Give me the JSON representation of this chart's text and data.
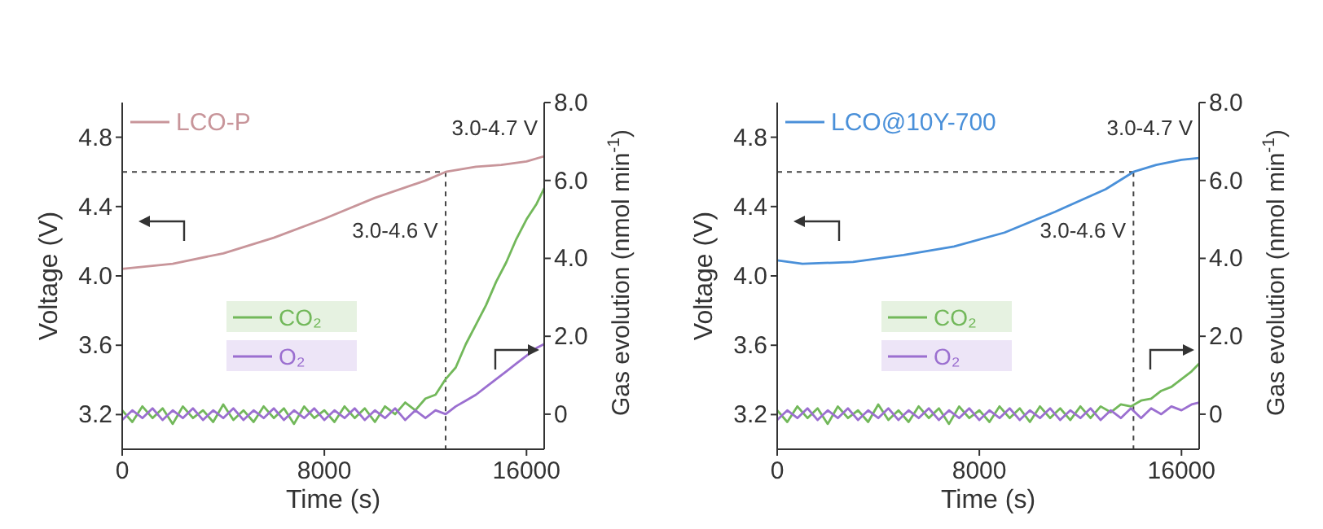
{
  "chart_data": [
    {
      "type": "line",
      "xlabel": "Time (s)",
      "ylabel": "Voltage (V)",
      "y2label": "Gas evolution (nmol min$^{-1}$)",
      "xlim": [
        0,
        16700
      ],
      "xticks": [
        0,
        8000,
        16000
      ],
      "ylim": [
        3.0,
        5.0
      ],
      "yticks": [
        3.2,
        3.6,
        {
          "value": 4.0,
          "label": "4.0"
        },
        4.4,
        4.8
      ],
      "y2lim": [
        -0.9,
        8.0
      ],
      "y2ticks": [
        0,
        {
          "value": 2,
          "label": "2.0"
        },
        {
          "value": 4,
          "label": "4.0"
        },
        {
          "value": 6,
          "label": "6.0"
        },
        {
          "value": 8,
          "label": "8.0"
        }
      ],
      "legend": "top left",
      "grid": false,
      "ref_lines": [
        {
          "axis": "y",
          "value": 4.6,
          "line_style": "dashed"
        },
        {
          "axis": "x",
          "value": 12800,
          "line_style": "dashed"
        }
      ],
      "annotations": [
        "3.0-4.7 V",
        {
          "text": "3.0-4.6 V",
          "x": 12500,
          "y": 4.22
        }
      ],
      "x": [
        0,
        400,
        800,
        1200,
        1600,
        2000,
        2400,
        2800,
        3200,
        3600,
        4000,
        4400,
        4800,
        5200,
        5600,
        6000,
        6400,
        6800,
        7200,
        7600,
        8000,
        8400,
        8800,
        9200,
        9600,
        10000,
        10400,
        10800,
        11200,
        11600,
        12000,
        12400,
        12800,
        13200,
        13600,
        14000,
        14400,
        14800,
        15200,
        15600,
        16000,
        16400,
        16700
      ],
      "series": [
        {
          "name": "LCO-P",
          "color": "#c8959a",
          "x": [
            0,
            2000,
            4000,
            6000,
            8000,
            10000,
            12000,
            12800,
            14000,
            15000,
            16000,
            16700
          ],
          "values": [
            4.04,
            4.07,
            4.13,
            4.22,
            4.33,
            4.45,
            4.55,
            4.6,
            4.63,
            4.64,
            4.66,
            4.69
          ]
        },
        {
          "name": "CO₂",
          "color": "#72b85a",
          "axis": "y2",
          "values": [
            0.1,
            -0.2,
            0.2,
            -0.1,
            0.15,
            -0.25,
            0.2,
            -0.1,
            0.1,
            -0.2,
            0.25,
            -0.15,
            0.1,
            -0.2,
            0.2,
            -0.1,
            0.15,
            -0.25,
            0.2,
            -0.1,
            0.1,
            -0.2,
            0.2,
            -0.1,
            0.15,
            -0.2,
            0.2,
            0,
            0.3,
            0.1,
            0.4,
            0.5,
            0.9,
            1.2,
            1.8,
            2.3,
            2.8,
            3.4,
            3.9,
            4.5,
            5.0,
            5.4,
            5.8
          ]
        },
        {
          "name": "O₂",
          "color": "#9b6fd0",
          "axis": "y2",
          "values": [
            -0.15,
            0.1,
            -0.1,
            0.15,
            -0.15,
            0.1,
            -0.1,
            0.15,
            -0.15,
            0.1,
            -0.1,
            0.15,
            -0.15,
            0.1,
            -0.1,
            0.15,
            -0.15,
            0.1,
            -0.1,
            0.15,
            -0.15,
            0.1,
            -0.1,
            0.15,
            -0.15,
            0.1,
            -0.1,
            0.15,
            -0.15,
            0.1,
            -0.1,
            0.1,
            0,
            0.2,
            0.35,
            0.5,
            0.7,
            0.9,
            1.1,
            1.3,
            1.5,
            1.7,
            1.8
          ]
        }
      ]
    },
    {
      "type": "line",
      "xlabel": "Time (s)",
      "ylabel": "Voltage (V)",
      "y2label": "Gas evolution (nmol min$^{-1}$)",
      "xlim": [
        0,
        16700
      ],
      "xticks": [
        0,
        8000,
        16000
      ],
      "ylim": [
        3.0,
        5.0
      ],
      "yticks": [
        3.2,
        3.6,
        {
          "value": 4.0,
          "label": "4.0"
        },
        4.4,
        4.8
      ],
      "y2lim": [
        -0.9,
        8.0
      ],
      "y2ticks": [
        0,
        {
          "value": 2,
          "label": "2.0"
        },
        {
          "value": 4,
          "label": "4.0"
        },
        {
          "value": 6,
          "label": "6.0"
        },
        {
          "value": 8,
          "label": "8.0"
        }
      ],
      "legend": "top left",
      "grid": false,
      "ref_lines": [
        {
          "axis": "y",
          "value": 4.6,
          "line_style": "dashed"
        },
        {
          "axis": "x",
          "value": 14100,
          "line_style": "dashed"
        }
      ],
      "annotations": [
        "3.0-4.7 V",
        {
          "text": "3.0-4.6 V",
          "x": 13800,
          "y": 4.22
        }
      ],
      "x": [
        0,
        400,
        800,
        1200,
        1600,
        2000,
        2400,
        2800,
        3200,
        3600,
        4000,
        4400,
        4800,
        5200,
        5600,
        6000,
        6400,
        6800,
        7200,
        7600,
        8000,
        8400,
        8800,
        9200,
        9600,
        10000,
        10400,
        10800,
        11200,
        11600,
        12000,
        12400,
        12800,
        13200,
        13600,
        14000,
        14400,
        14800,
        15200,
        15600,
        16000,
        16400,
        16700
      ],
      "series": [
        {
          "name": "LCO@10Y-700",
          "color": "#4a90d9",
          "x": [
            0,
            1000,
            3000,
            5000,
            7000,
            9000,
            11000,
            13000,
            14100,
            15000,
            16000,
            16700
          ],
          "values": [
            4.09,
            4.07,
            4.08,
            4.12,
            4.17,
            4.25,
            4.37,
            4.5,
            4.6,
            4.64,
            4.67,
            4.68
          ]
        },
        {
          "name": "CO₂",
          "color": "#72b85a",
          "axis": "y2",
          "values": [
            0.1,
            -0.2,
            0.2,
            -0.1,
            0.15,
            -0.25,
            0.2,
            -0.1,
            0.1,
            -0.2,
            0.25,
            -0.15,
            0.1,
            -0.2,
            0.2,
            -0.1,
            0.15,
            -0.25,
            0.2,
            -0.1,
            0.1,
            -0.2,
            0.2,
            -0.1,
            0.15,
            -0.2,
            0.2,
            -0.1,
            0.15,
            -0.15,
            0.2,
            -0.1,
            0.2,
            0.05,
            0.25,
            0.2,
            0.35,
            0.4,
            0.6,
            0.7,
            0.9,
            1.1,
            1.3
          ]
        },
        {
          "name": "O₂",
          "color": "#9b6fd0",
          "axis": "y2",
          "values": [
            -0.15,
            0.1,
            -0.1,
            0.15,
            -0.15,
            0.1,
            -0.1,
            0.15,
            -0.15,
            0.1,
            -0.1,
            0.15,
            -0.15,
            0.1,
            -0.1,
            0.15,
            -0.15,
            0.1,
            -0.1,
            0.15,
            -0.15,
            0.1,
            -0.1,
            0.15,
            -0.15,
            0.1,
            -0.1,
            0.15,
            -0.15,
            0.1,
            -0.1,
            0.15,
            -0.15,
            0.1,
            -0.1,
            0.15,
            -0.1,
            0.15,
            0,
            0.2,
            0.1,
            0.25,
            0.3
          ]
        }
      ]
    }
  ]
}
